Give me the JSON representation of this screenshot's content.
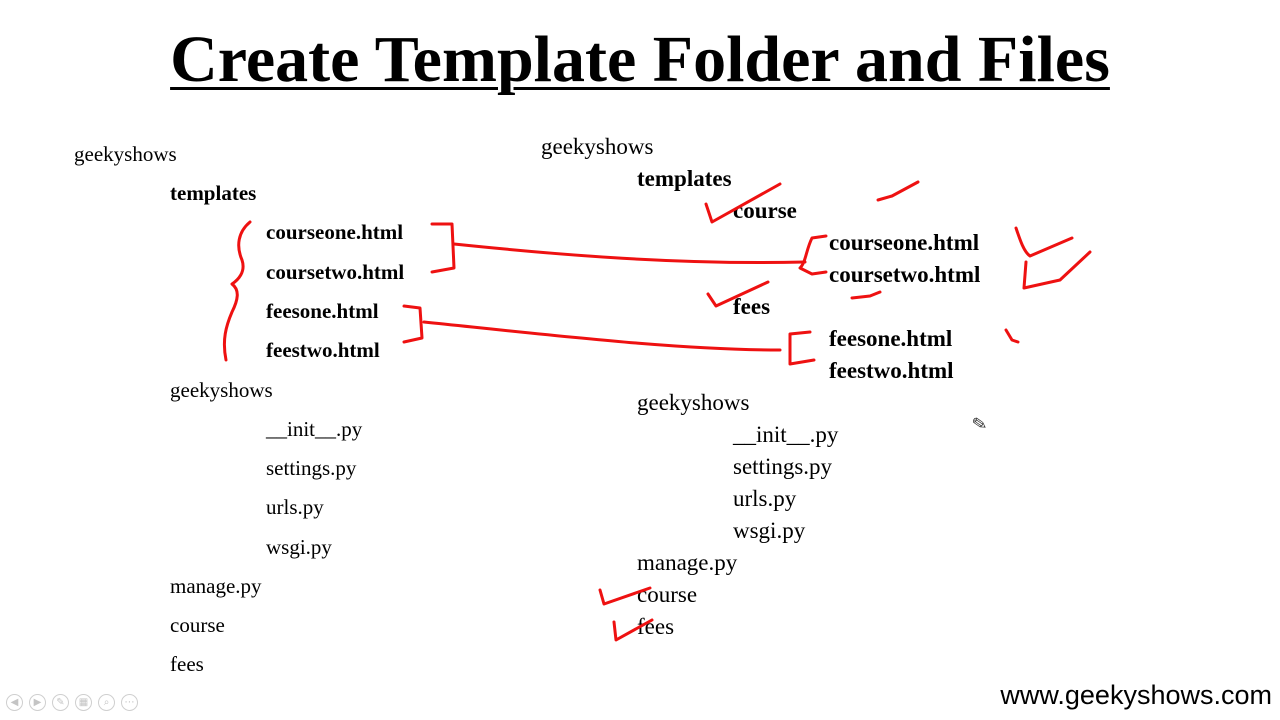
{
  "slide": {
    "title": "Create Template Folder and Files",
    "footer": "www.geekyshows.com"
  },
  "left_tree": {
    "root": "geekyshows",
    "templates": "templates",
    "template_files": [
      "courseone.html",
      "coursetwo.html",
      "feesone.html",
      "feestwo.html"
    ],
    "project": "geekyshows",
    "project_files": [
      "__init__.py",
      "settings.py",
      "urls.py",
      "wsgi.py"
    ],
    "manage": "manage.py",
    "apps": [
      "course",
      "fees"
    ]
  },
  "right_tree": {
    "root": "geekyshows",
    "templates": "templates",
    "course_folder": "course",
    "course_files": [
      "courseone.html",
      "coursetwo.html"
    ],
    "fees_folder": "fees",
    "fees_files": [
      "feesone.html",
      "feestwo.html"
    ],
    "project": "geekyshows",
    "project_files": [
      "__init__.py",
      "settings.py",
      "urls.py",
      "wsgi.py"
    ],
    "manage": "manage.py",
    "apps": [
      "course",
      "fees"
    ]
  },
  "annotations": {
    "ink_color": "#ee1111"
  },
  "toolbar_icons": [
    "prev-icon",
    "next-icon",
    "pen-icon",
    "slides-icon",
    "zoom-icon",
    "more-icon"
  ],
  "cursor_icon": "pen-cursor-icon"
}
